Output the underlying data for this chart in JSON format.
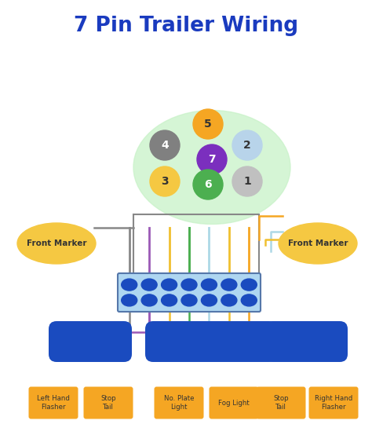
{
  "title": "7 Pin Trailer Wiring",
  "title_color": "#1a3bbf",
  "bg_color": "#ffffff",
  "pin_data": [
    [
      1,
      0,
      "#c8c8c8"
    ],
    [
      2,
      0,
      "#b8d4ea"
    ],
    [
      3,
      0,
      "#f5c842"
    ],
    [
      4,
      0,
      "#808080"
    ],
    [
      5,
      0,
      "#f5a623"
    ],
    [
      6,
      0,
      "#4caf50"
    ],
    [
      7,
      0,
      "#7b2fbe"
    ]
  ],
  "wire_colors": {
    "gray": "#888888",
    "purple": "#9b59b6",
    "yellow": "#f0c030",
    "green": "#4caf50",
    "lblue": "#add8e6",
    "orange": "#f5a623"
  },
  "connector_bg": "#aed6f1",
  "connector_border": "#5577aa",
  "terminal_color": "#1a4bbf",
  "marker_color": "#f5c842",
  "module_color": "#1a4bbf",
  "label_bg": "#f5a623",
  "label_text": "#333333",
  "labels": [
    [
      68,
      "Left Hand\nFlasher"
    ],
    [
      138,
      "Stop\nTail"
    ],
    [
      228,
      "No. Plate\nLight"
    ],
    [
      298,
      "Fog Light"
    ],
    [
      358,
      "Stop\nTail"
    ],
    [
      425,
      "Right Hand\nFlasher"
    ]
  ]
}
